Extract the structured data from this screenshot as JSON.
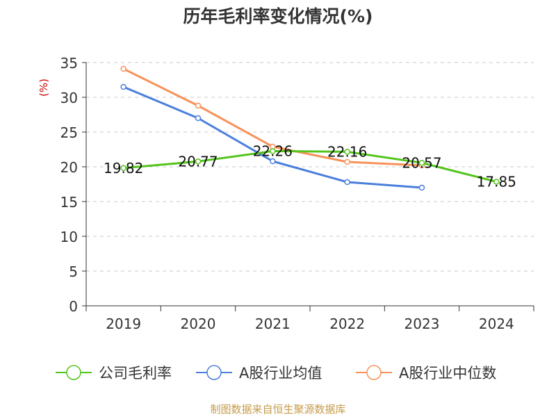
{
  "chart_data": {
    "type": "line",
    "title": "历年毛利率变化情况(%)",
    "ylabel": "(%)",
    "xlabel": "",
    "categories": [
      "2019",
      "2020",
      "2021",
      "2022",
      "2023",
      "2024"
    ],
    "ylim": [
      0,
      35
    ],
    "yticks": [
      0,
      5,
      10,
      15,
      20,
      25,
      30,
      35
    ],
    "grid": "horizontal dashed",
    "legend_position": "bottom",
    "series": [
      {
        "name": "公司毛利率",
        "color": "#52c41a",
        "values": [
          19.82,
          20.77,
          22.26,
          22.16,
          20.57,
          17.85
        ],
        "labels": [
          "19.82",
          "20.77",
          "22.26",
          "22.16",
          "20.57",
          "17.85"
        ]
      },
      {
        "name": "A股行业均值",
        "color": "#4a7fdc",
        "values": [
          31.5,
          27.0,
          20.8,
          17.8,
          17.0,
          null
        ]
      },
      {
        "name": "A股行业中位数",
        "color": "#f79259",
        "values": [
          34.1,
          28.8,
          22.9,
          20.7,
          20.2,
          null
        ]
      }
    ]
  },
  "footer": {
    "source": "制图数据来自恒生聚源数据库"
  },
  "colors": {
    "title": "#333333",
    "axis": "#333333",
    "grid": "#c8c8c8",
    "ylabel": "#cc0000",
    "footer": "#c59b4a"
  }
}
